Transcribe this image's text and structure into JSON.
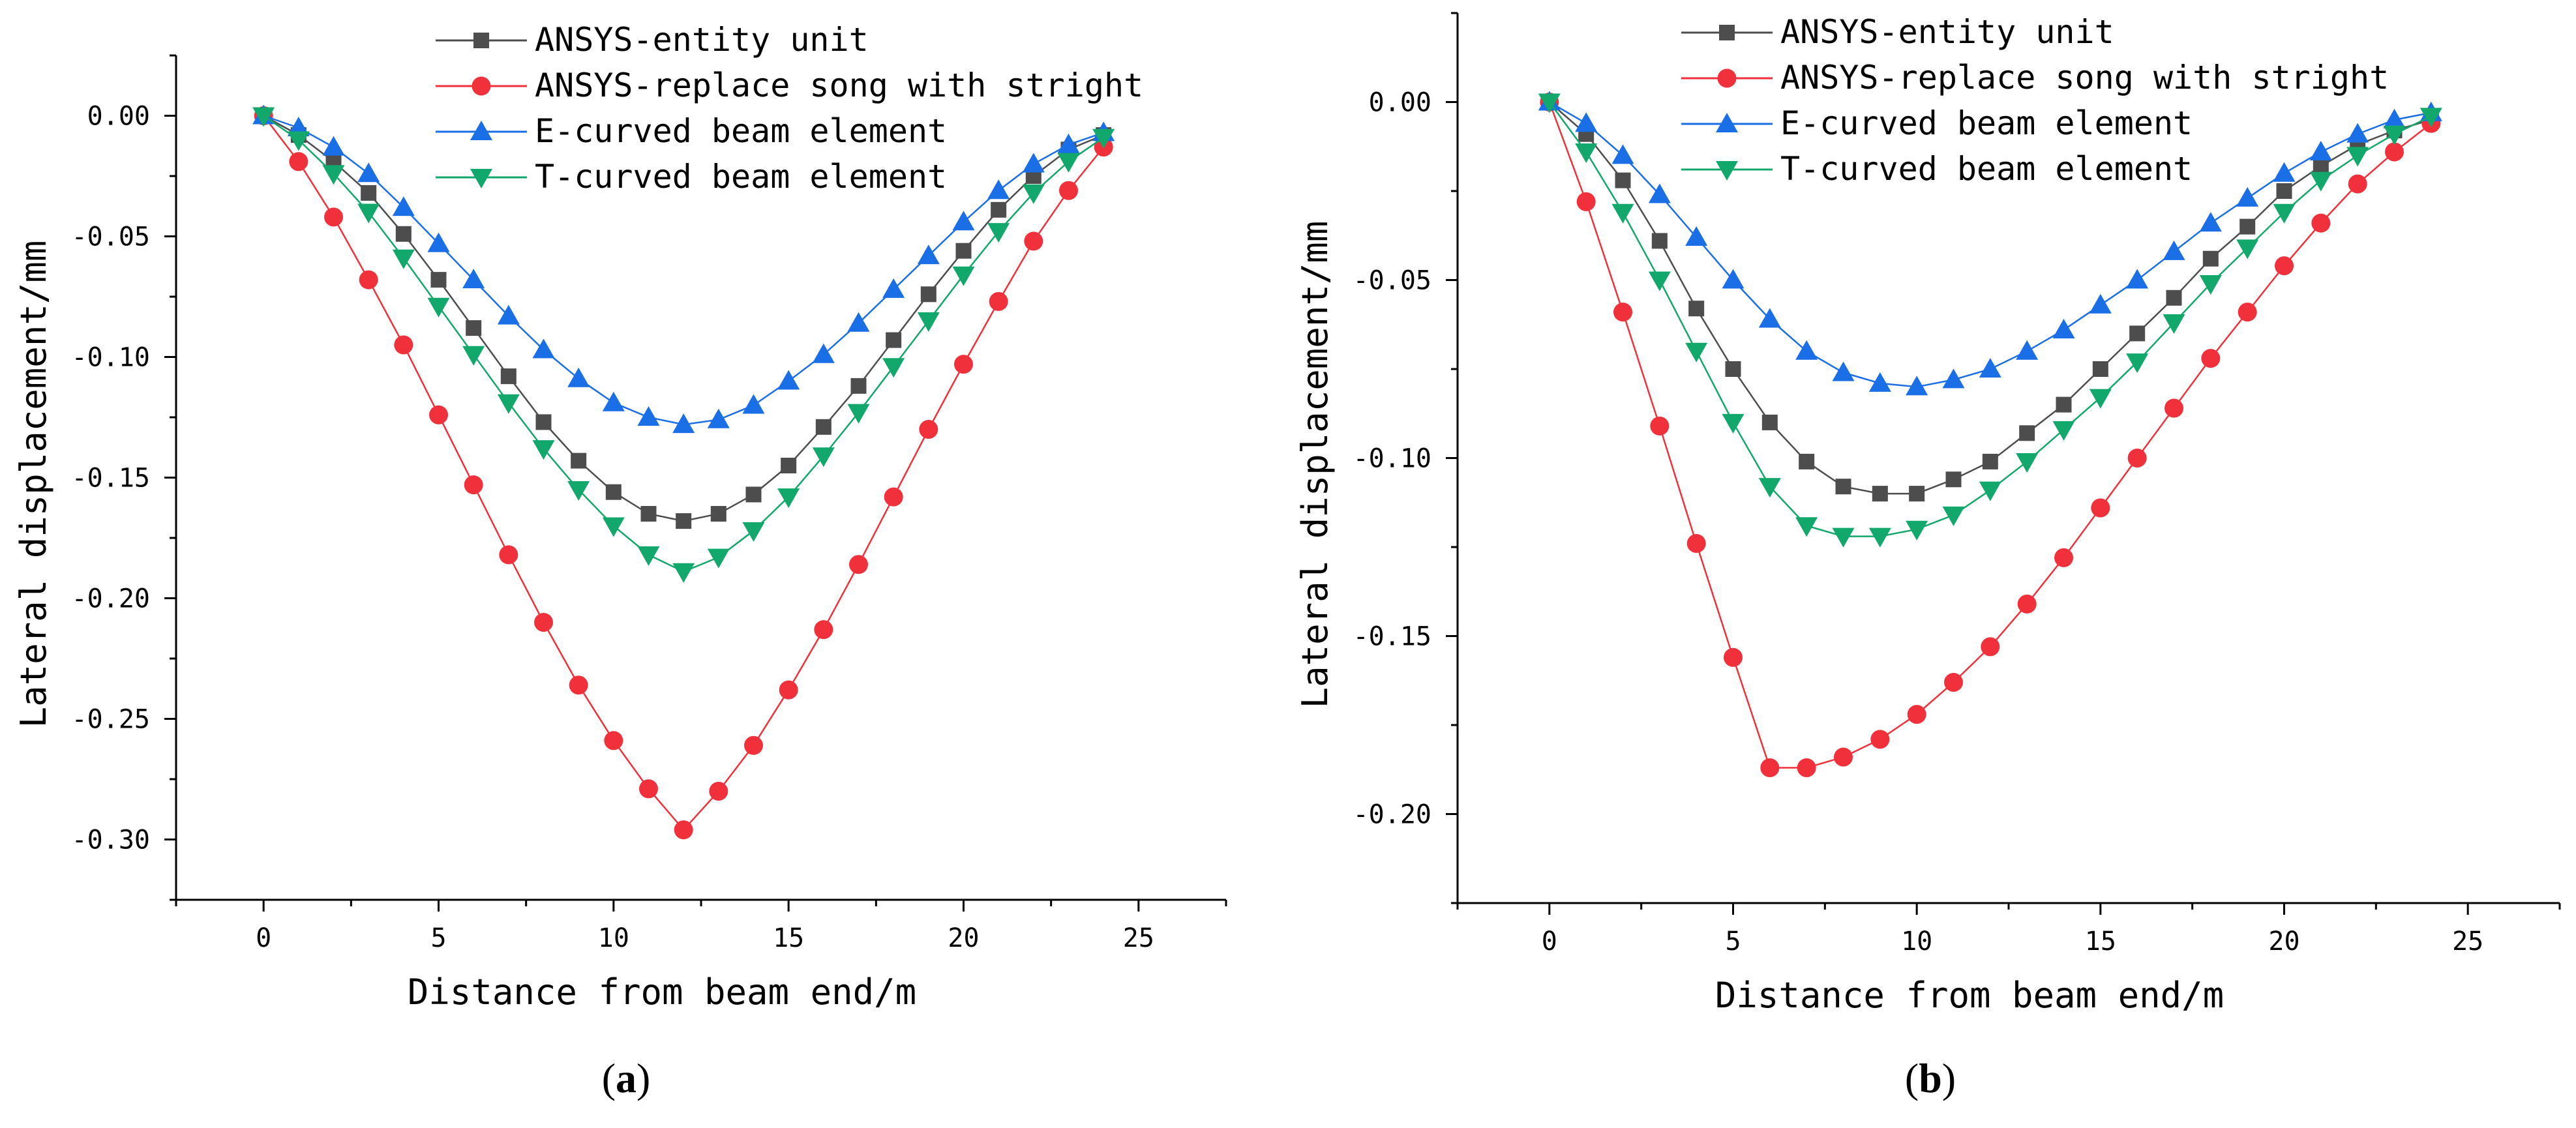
{
  "chart_data": [
    {
      "id": "a",
      "type": "line",
      "caption": "a",
      "xlabel": "Distance from beam end/m",
      "ylabel": "Lateral displacement/mm",
      "xlim": [
        -2.5,
        27.5
      ],
      "ylim": [
        -0.325,
        0.025
      ],
      "xticks": [
        0,
        5,
        10,
        15,
        20,
        25
      ],
      "xtick_labels": [
        "0",
        "5",
        "10",
        "15",
        "20",
        "25"
      ],
      "yticks": [
        0.0,
        -0.05,
        -0.1,
        -0.15,
        -0.2,
        -0.25,
        -0.3
      ],
      "ytick_labels": [
        "0.00",
        "-0.05",
        "-0.10",
        "-0.15",
        "-0.20",
        "-0.25",
        "-0.30"
      ],
      "legend_position": "top-center",
      "x": [
        0,
        1,
        2,
        3,
        4,
        5,
        6,
        7,
        8,
        9,
        10,
        11,
        12,
        13,
        14,
        15,
        16,
        17,
        18,
        19,
        20,
        21,
        22,
        23,
        24
      ],
      "series": [
        {
          "name": "ANSYS-entity unit",
          "marker": "square",
          "color": "#4d4d4d",
          "values": [
            0,
            -0.008,
            -0.019,
            -0.032,
            -0.049,
            -0.068,
            -0.088,
            -0.108,
            -0.127,
            -0.143,
            -0.156,
            -0.165,
            -0.168,
            -0.165,
            -0.157,
            -0.145,
            -0.129,
            -0.112,
            -0.093,
            -0.074,
            -0.056,
            -0.039,
            -0.025,
            -0.014,
            -0.008
          ]
        },
        {
          "name": "ANSYS-replace song with stright",
          "marker": "circle",
          "color": "#f0313b",
          "values": [
            0,
            -0.019,
            -0.042,
            -0.068,
            -0.095,
            -0.124,
            -0.153,
            -0.182,
            -0.21,
            -0.236,
            -0.259,
            -0.279,
            -0.296,
            -0.28,
            -0.261,
            -0.238,
            -0.213,
            -0.186,
            -0.158,
            -0.13,
            -0.103,
            -0.077,
            -0.052,
            -0.031,
            -0.013
          ]
        },
        {
          "name": "E-curved beam element",
          "marker": "triangle-up",
          "color": "#1a6ee6",
          "values": [
            0,
            -0.005,
            -0.013,
            -0.024,
            -0.038,
            -0.053,
            -0.068,
            -0.083,
            -0.097,
            -0.109,
            -0.119,
            -0.125,
            -0.128,
            -0.126,
            -0.12,
            -0.11,
            -0.099,
            -0.086,
            -0.072,
            -0.058,
            -0.044,
            -0.031,
            -0.02,
            -0.012,
            -0.007
          ]
        },
        {
          "name": "T-curved beam element",
          "marker": "triangle-down",
          "color": "#13a86b",
          "values": [
            0,
            -0.01,
            -0.024,
            -0.04,
            -0.059,
            -0.079,
            -0.099,
            -0.119,
            -0.138,
            -0.155,
            -0.17,
            -0.182,
            -0.189,
            -0.183,
            -0.172,
            -0.158,
            -0.141,
            -0.123,
            -0.104,
            -0.085,
            -0.066,
            -0.048,
            -0.032,
            -0.019,
            -0.009
          ]
        }
      ]
    },
    {
      "id": "b",
      "type": "line",
      "caption": "b",
      "xlabel": "Distance from beam end/m",
      "ylabel": "Lateral displacement/mm",
      "xlim": [
        -2.5,
        27.5
      ],
      "ylim": [
        -0.225,
        0.025
      ],
      "xticks": [
        0,
        5,
        10,
        15,
        20,
        25
      ],
      "xtick_labels": [
        "0",
        "5",
        "10",
        "15",
        "20",
        "25"
      ],
      "yticks": [
        0.0,
        -0.05,
        -0.1,
        -0.15,
        -0.2
      ],
      "ytick_labels": [
        "0.00",
        "-0.05",
        "-0.10",
        "-0.15",
        "-0.20"
      ],
      "legend_position": "top-center",
      "x": [
        0,
        1,
        2,
        3,
        4,
        5,
        6,
        7,
        8,
        9,
        10,
        11,
        12,
        13,
        14,
        15,
        16,
        17,
        18,
        19,
        20,
        21,
        22,
        23,
        24
      ],
      "series": [
        {
          "name": "ANSYS-entity unit",
          "marker": "square",
          "color": "#4d4d4d",
          "values": [
            0,
            -0.009,
            -0.022,
            -0.039,
            -0.058,
            -0.075,
            -0.09,
            -0.101,
            -0.108,
            -0.11,
            -0.11,
            -0.106,
            -0.101,
            -0.093,
            -0.085,
            -0.075,
            -0.065,
            -0.055,
            -0.044,
            -0.035,
            -0.025,
            -0.018,
            -0.012,
            -0.008,
            -0.005
          ]
        },
        {
          "name": "ANSYS-replace song with stright",
          "marker": "circle",
          "color": "#f0313b",
          "values": [
            0,
            -0.028,
            -0.059,
            -0.091,
            -0.124,
            -0.156,
            -0.187,
            -0.187,
            -0.184,
            -0.179,
            -0.172,
            -0.163,
            -0.153,
            -0.141,
            -0.128,
            -0.114,
            -0.1,
            -0.086,
            -0.072,
            -0.059,
            -0.046,
            -0.034,
            -0.023,
            -0.014,
            -0.006
          ]
        },
        {
          "name": "E-curved beam element",
          "marker": "triangle-up",
          "color": "#1a6ee6",
          "values": [
            0,
            -0.006,
            -0.015,
            -0.026,
            -0.038,
            -0.05,
            -0.061,
            -0.07,
            -0.076,
            -0.079,
            -0.08,
            -0.078,
            -0.075,
            -0.07,
            -0.064,
            -0.057,
            -0.05,
            -0.042,
            -0.034,
            -0.027,
            -0.02,
            -0.014,
            -0.009,
            -0.005,
            -0.003
          ]
        },
        {
          "name": "T-curved beam element",
          "marker": "triangle-down",
          "color": "#13a86b",
          "values": [
            0,
            -0.014,
            -0.031,
            -0.05,
            -0.07,
            -0.09,
            -0.108,
            -0.119,
            -0.122,
            -0.122,
            -0.12,
            -0.116,
            -0.109,
            -0.101,
            -0.092,
            -0.083,
            -0.073,
            -0.062,
            -0.051,
            -0.041,
            -0.031,
            -0.022,
            -0.015,
            -0.009,
            -0.004
          ]
        }
      ]
    }
  ]
}
